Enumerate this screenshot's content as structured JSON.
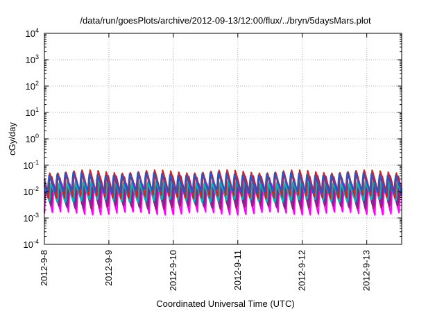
{
  "chart_data": {
    "type": "line",
    "title": "/data/run/goesPlots/archive/2012-09-13/12:00/flux/../bryn/5daysMars.plot",
    "xlabel": "Coordinated Universal Time (UTC)",
    "ylabel": "cGy/day",
    "y_scale": "log",
    "ylim": [
      0.0001,
      10000
    ],
    "xlim": [
      "2012-09-08T00:00",
      "2012-09-13T13:00"
    ],
    "grid": true,
    "legend": "none",
    "x_ticks": [
      {
        "label": "2012-9-8",
        "at": "2012-09-08T00:00"
      },
      {
        "label": "2012-9-9",
        "at": "2012-09-09T00:00"
      },
      {
        "label": "2012-9-10",
        "at": "2012-09-10T00:00"
      },
      {
        "label": "2012-9-11",
        "at": "2012-09-11T00:00"
      },
      {
        "label": "2012-9-12",
        "at": "2012-09-12T00:00"
      },
      {
        "label": "2012-9-13",
        "at": "2012-09-13T00:00"
      }
    ],
    "y_ticks": [
      {
        "base": "10",
        "exp": "-4",
        "value": 0.0001
      },
      {
        "base": "10",
        "exp": "-3",
        "value": 0.001
      },
      {
        "base": "10",
        "exp": "-2",
        "value": 0.01
      },
      {
        "base": "10",
        "exp": "-1",
        "value": 0.1
      },
      {
        "base": "10",
        "exp": "0",
        "value": 1
      },
      {
        "base": "10",
        "exp": "1",
        "value": 10
      },
      {
        "base": "10",
        "exp": "2",
        "value": 100
      },
      {
        "base": "10",
        "exp": "3",
        "value": 1000
      },
      {
        "base": "10",
        "exp": "4",
        "value": 10000
      }
    ],
    "sawtooth_period_hours": 3,
    "series": [
      {
        "color": "#ff00ff",
        "peak": 0.018,
        "trough": 0.0015
      },
      {
        "color": "#9b1c6a",
        "peak": 0.022,
        "trough": 0.0022
      },
      {
        "color": "#7a2a9a",
        "peak": 0.035,
        "trough": 0.003
      },
      {
        "color": "#00b8b8",
        "peak": 0.025,
        "trough": 0.004
      },
      {
        "color": "#d42020",
        "peak": 0.06,
        "trough": 0.006
      },
      {
        "color": "#2a55c8",
        "peak": 0.05,
        "trough": 0.009
      }
    ]
  }
}
